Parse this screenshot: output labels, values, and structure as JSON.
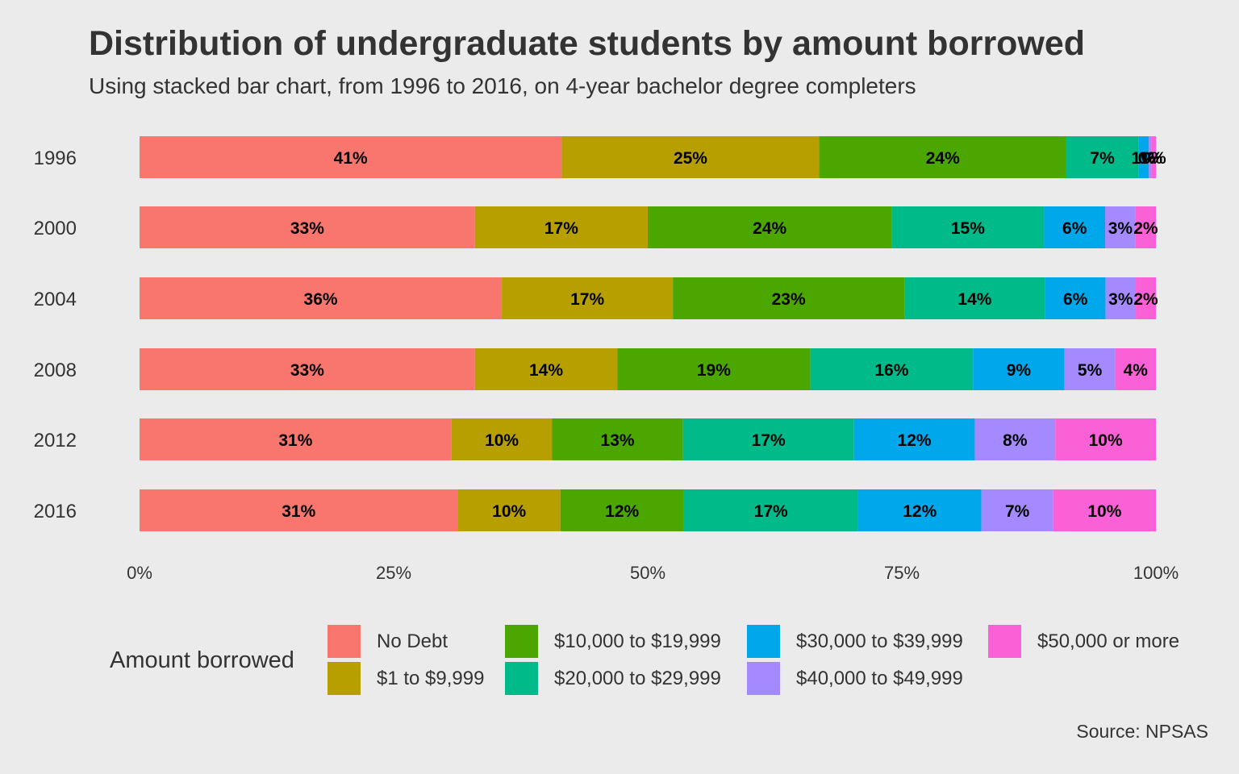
{
  "title": "Distribution of undergraduate students by amount borrowed",
  "subtitle": "Using stacked bar chart, from 1996 to 2016, on 4-year bachelor degree completers",
  "caption": "Source: NPSAS",
  "legend_title": "Amount borrowed",
  "chart_data": {
    "type": "bar",
    "orientation": "horizontal",
    "stacked": true,
    "title": "Distribution of undergraduate students by amount borrowed",
    "subtitle": "Using stacked bar chart, from 1996 to 2016, on 4-year bachelor degree completers",
    "categories": [
      "1996",
      "2000",
      "2004",
      "2008",
      "2012",
      "2016"
    ],
    "xlim": [
      0,
      100
    ],
    "x_ticks": [
      "0%",
      "25%",
      "50%",
      "75%",
      "100%"
    ],
    "legend_position": "bottom",
    "grid": false,
    "series": [
      {
        "name": "No Debt",
        "color": "#F8766D",
        "values": [
          41,
          33,
          36,
          33,
          31,
          31
        ],
        "labels": [
          "41%",
          "33%",
          "36%",
          "33%",
          "31%",
          "31%"
        ]
      },
      {
        "name": "$1 to $9,999",
        "color": "#B79F00",
        "values": [
          25,
          17,
          17,
          14,
          10,
          10
        ],
        "labels": [
          "25%",
          "17%",
          "17%",
          "14%",
          "10%",
          "10%"
        ]
      },
      {
        "name": "$10,000 to $19,999",
        "color": "#4BA600",
        "values": [
          24,
          24,
          23,
          19,
          13,
          12
        ],
        "labels": [
          "24%",
          "24%",
          "23%",
          "19%",
          "13%",
          "12%"
        ]
      },
      {
        "name": "$20,000 to $29,999",
        "color": "#00BA8A",
        "values": [
          7,
          15,
          14,
          16,
          17,
          17
        ],
        "labels": [
          "7%",
          "15%",
          "14%",
          "16%",
          "17%",
          "17%"
        ]
      },
      {
        "name": "$30,000 to $39,999",
        "color": "#00A7EB",
        "values": [
          1,
          6,
          6,
          9,
          12,
          12
        ],
        "labels": [
          "1%",
          "6%",
          "6%",
          "9%",
          "12%",
          "12%"
        ]
      },
      {
        "name": "$40,000 to $49,999",
        "color": "#A58AFF",
        "values": [
          0.3,
          3,
          3,
          5,
          8,
          7
        ],
        "labels": [
          "0%",
          "3%",
          "3%",
          "5%",
          "8%",
          "7%"
        ]
      },
      {
        "name": "$50,000 or more",
        "color": "#FB61D7",
        "values": [
          0.4,
          2,
          2,
          4,
          10,
          10
        ],
        "labels": [
          "0%",
          "2%",
          "2%",
          "4%",
          "10%",
          "10%"
        ]
      }
    ]
  }
}
